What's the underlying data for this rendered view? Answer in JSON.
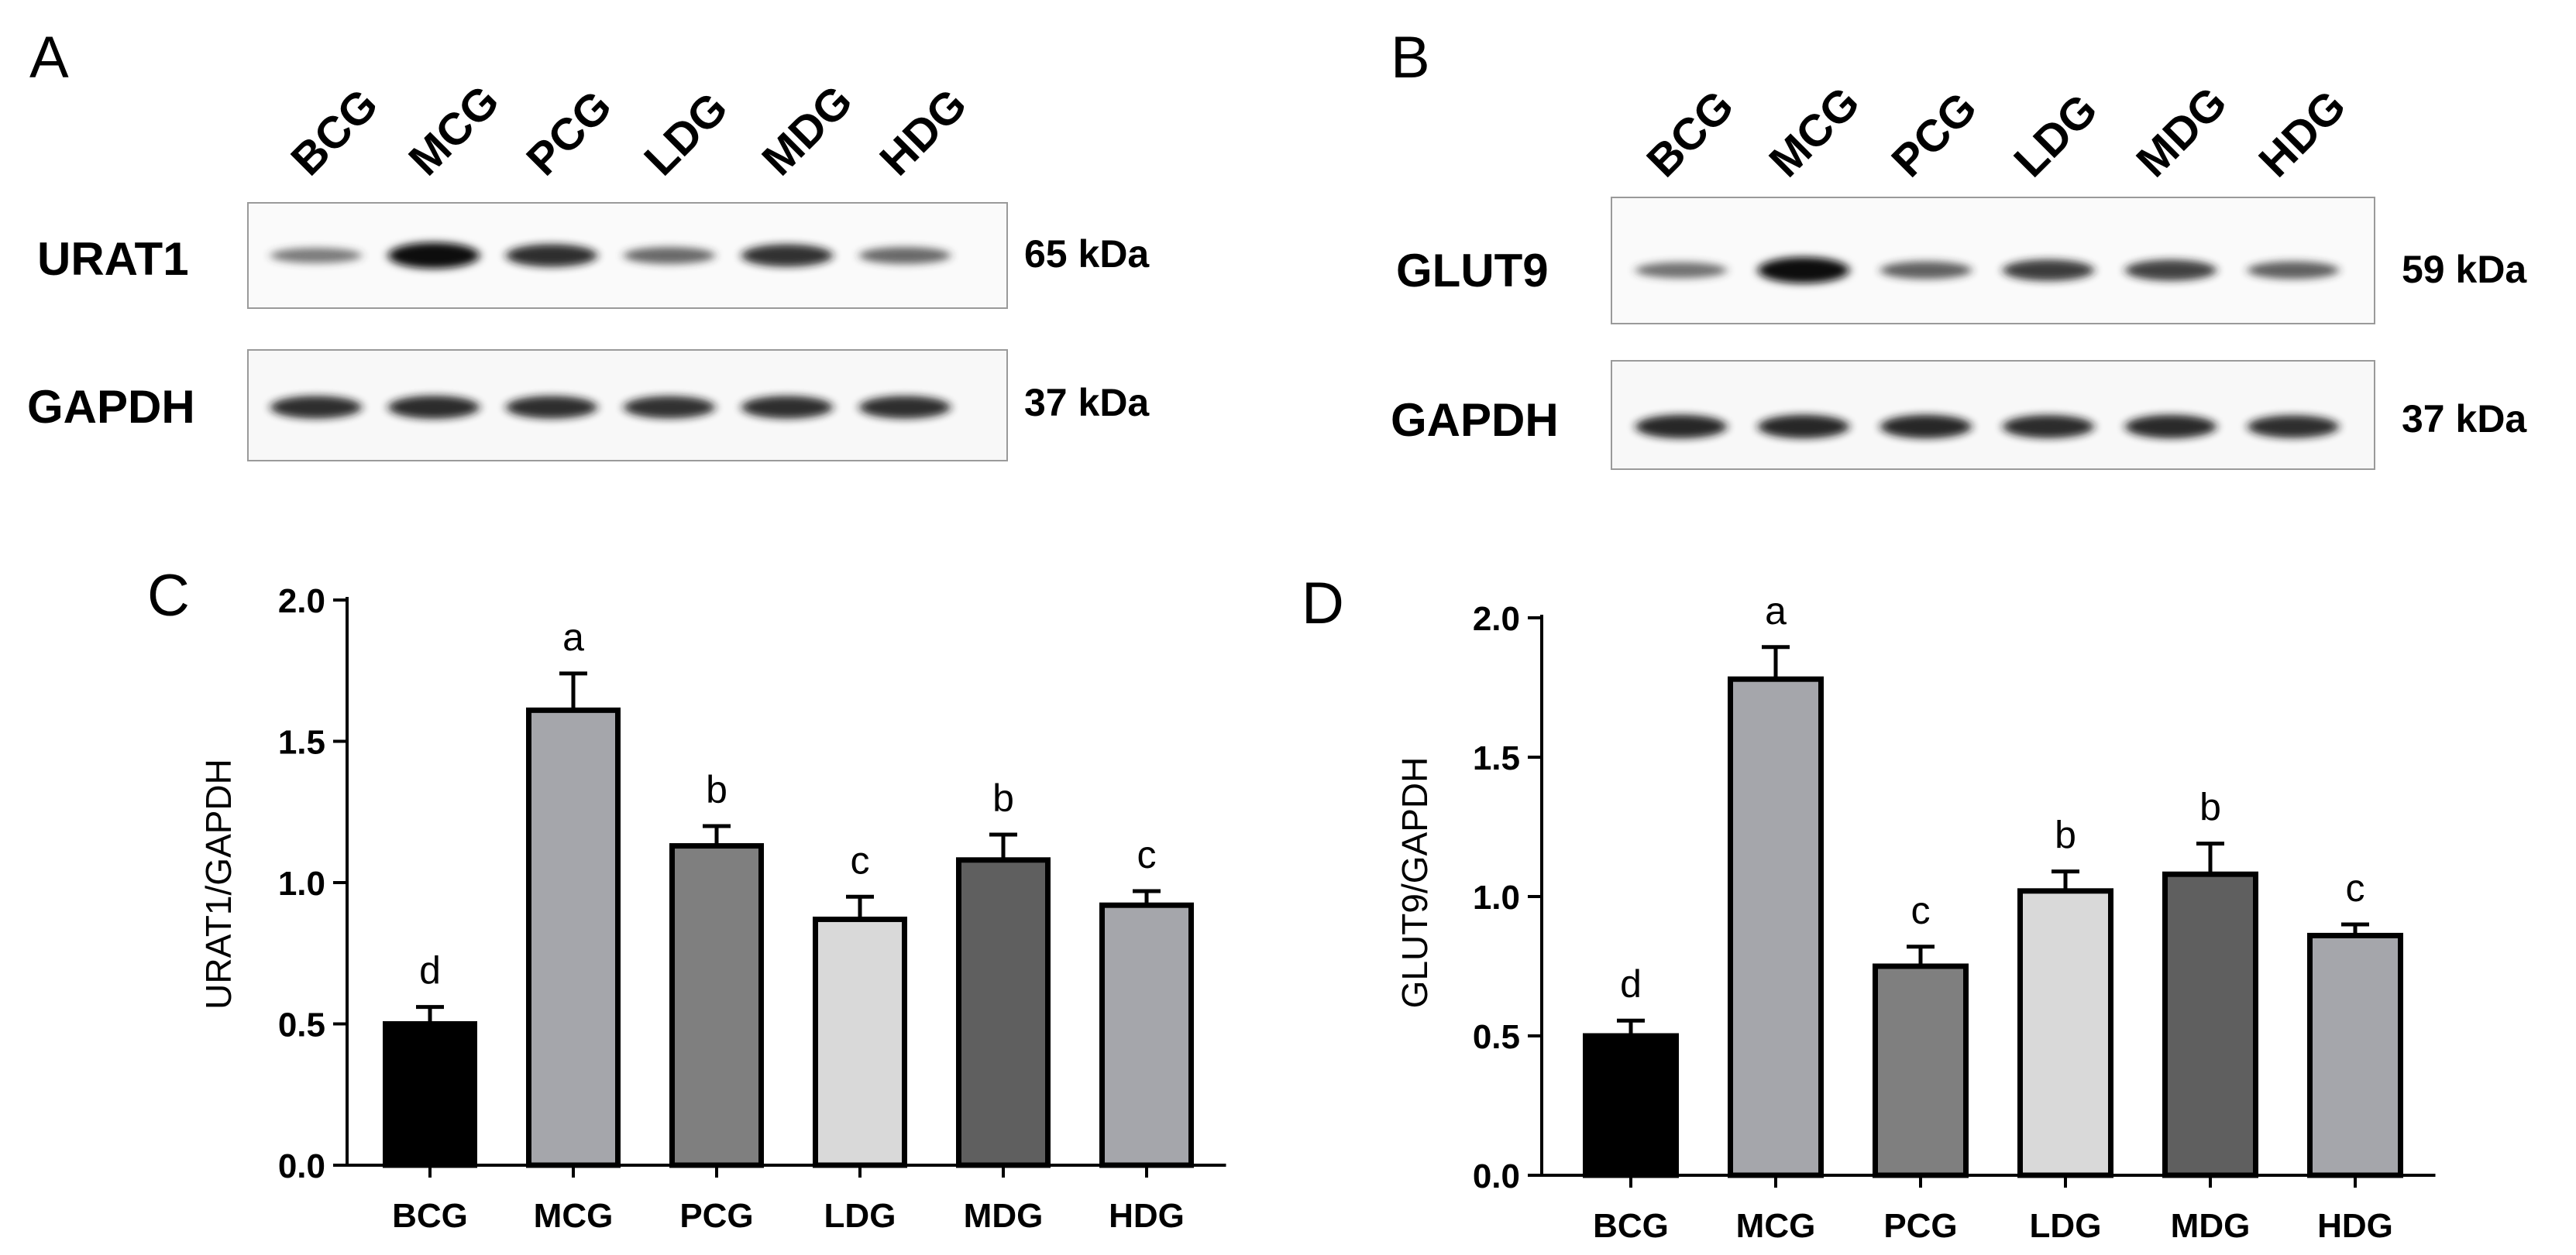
{
  "panels": {
    "A": {
      "letter": "A",
      "lanes": [
        "BCG",
        "MCG",
        "PCG",
        "LDG",
        "MDG",
        "HDG"
      ],
      "blots": [
        {
          "protein": "URAT1",
          "kda": "65 kDa",
          "intensity": [
            0.35,
            1.0,
            0.8,
            0.45,
            0.78,
            0.45
          ]
        },
        {
          "protein": "GAPDH",
          "kda": "37 kDa",
          "intensity": [
            0.8,
            0.82,
            0.8,
            0.78,
            0.8,
            0.8
          ]
        }
      ]
    },
    "B": {
      "letter": "B",
      "lanes": [
        "BCG",
        "MCG",
        "PCG",
        "LDG",
        "MDG",
        "HDG"
      ],
      "blots": [
        {
          "protein": "GLUT9",
          "kda": "59 kDa",
          "intensity": [
            0.4,
            1.0,
            0.5,
            0.72,
            0.7,
            0.5
          ]
        },
        {
          "protein": "GAPDH",
          "kda": "37 kDa",
          "intensity": [
            0.85,
            0.85,
            0.85,
            0.82,
            0.84,
            0.8
          ]
        }
      ]
    }
  },
  "chart_data": [
    {
      "panel": "C",
      "type": "bar",
      "categories": [
        "BCG",
        "MCG",
        "PCG",
        "LDG",
        "MDG",
        "HDG"
      ],
      "values": [
        0.5,
        1.61,
        1.13,
        0.87,
        1.08,
        0.92
      ],
      "errors": [
        0.06,
        0.13,
        0.07,
        0.08,
        0.09,
        0.05
      ],
      "letters": [
        "d",
        "a",
        "b",
        "c",
        "b",
        "c"
      ],
      "bar_colors": [
        "#000000",
        "#a5a6ab",
        "#7f7f7f",
        "#d9d9d9",
        "#5f5f5f",
        "#a5a6ab"
      ],
      "ylabel": "URAT1/GAPDH",
      "xlabel": "",
      "ylim": [
        0,
        2.0
      ],
      "yticks": [
        "0.0",
        "0.5",
        "1.0",
        "1.5",
        "2.0"
      ]
    },
    {
      "panel": "D",
      "type": "bar",
      "categories": [
        "BCG",
        "MCG",
        "PCG",
        "LDG",
        "MDG",
        "HDG"
      ],
      "values": [
        0.5,
        1.78,
        0.75,
        1.02,
        1.08,
        0.86
      ],
      "errors": [
        0.055,
        0.115,
        0.07,
        0.07,
        0.11,
        0.04
      ],
      "letters": [
        "d",
        "a",
        "c",
        "b",
        "b",
        "c"
      ],
      "bar_colors": [
        "#000000",
        "#a5a6ab",
        "#7f7f7f",
        "#d9d9d9",
        "#5f5f5f",
        "#a5a6ab"
      ],
      "ylabel": "GLUT9/GAPDH",
      "xlabel": "",
      "ylim": [
        0,
        2.0
      ],
      "yticks": [
        "0.0",
        "0.5",
        "1.0",
        "1.5",
        "2.0"
      ]
    }
  ]
}
